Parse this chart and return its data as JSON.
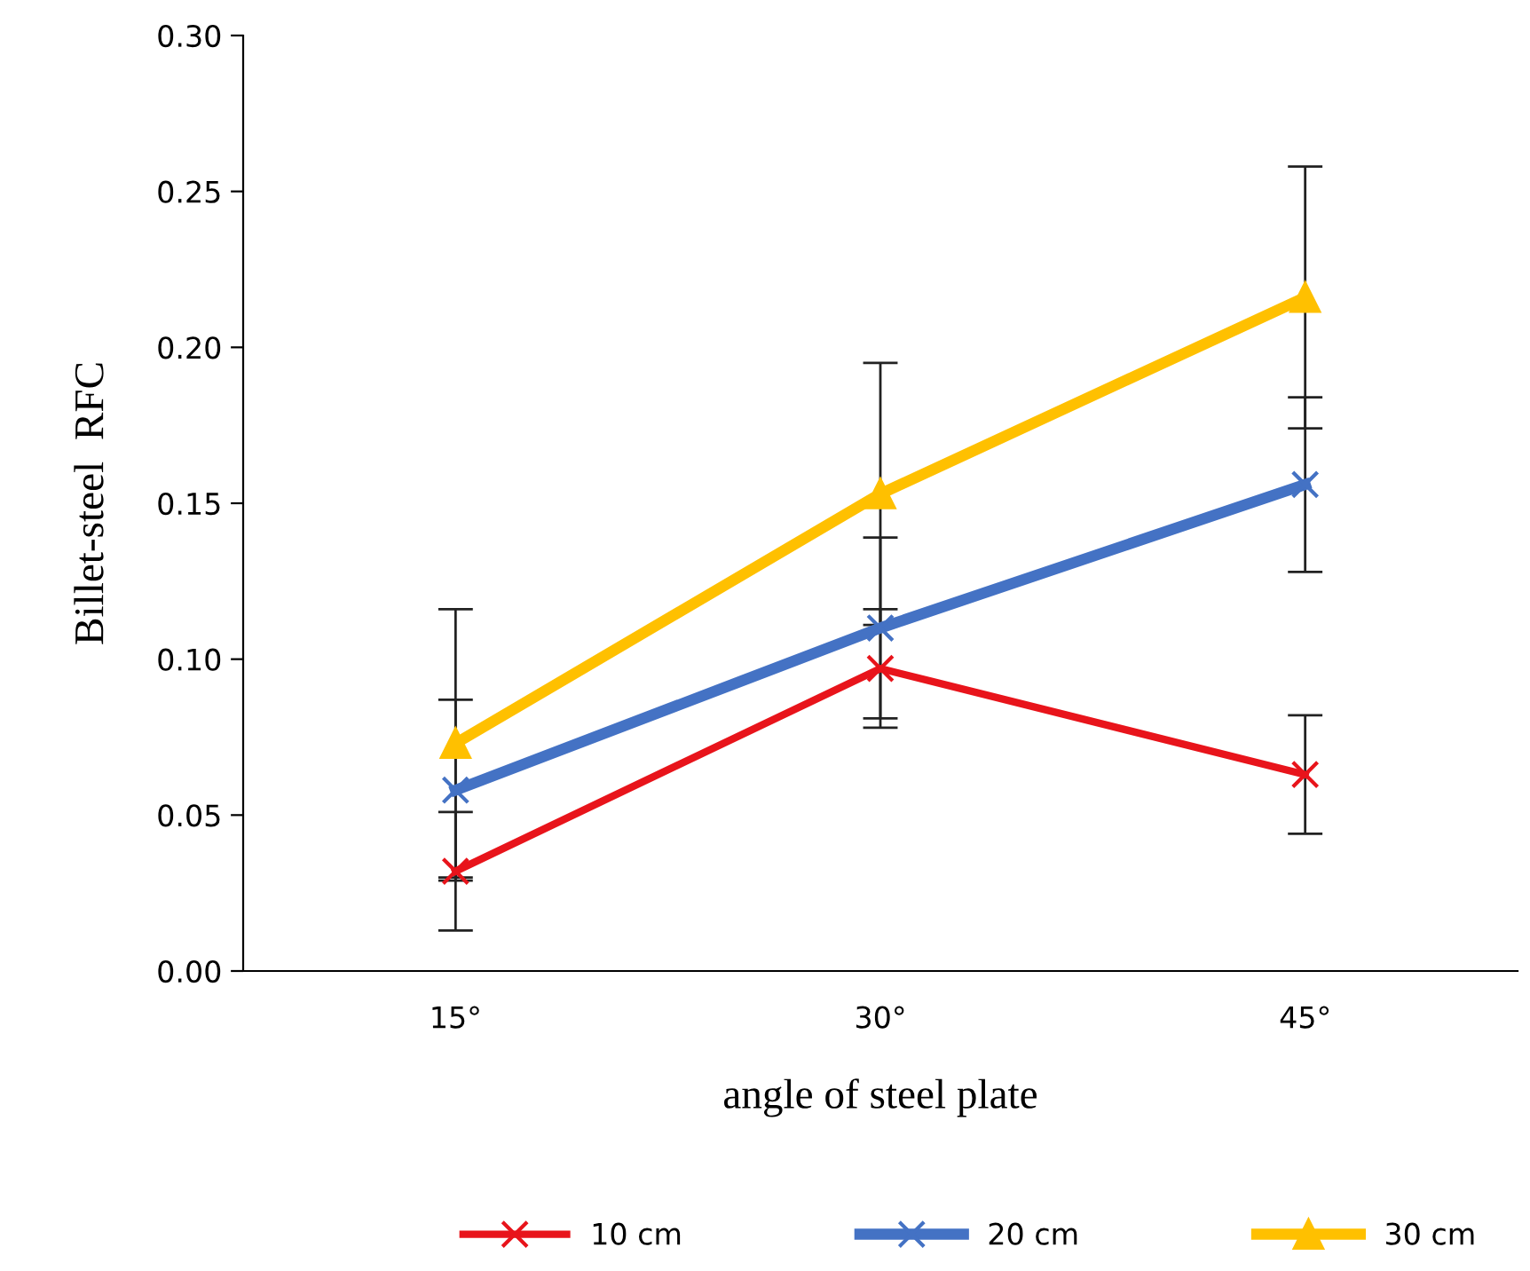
{
  "chart_data": {
    "type": "line",
    "xlabel": "angle of steel plate",
    "ylabel": "Billet-steel  RFC",
    "categories": [
      "15°",
      "30°",
      "45°"
    ],
    "series": [
      {
        "name": "10 cm",
        "color": "#e8141b",
        "marker": "cross",
        "values": [
          0.032,
          0.097,
          0.063
        ],
        "errors": [
          0.019,
          0.019,
          0.019
        ]
      },
      {
        "name": "20 cm",
        "color": "#4472c4",
        "marker": "cross",
        "values": [
          0.058,
          0.11,
          0.156
        ],
        "errors": [
          0.029,
          0.029,
          0.028
        ]
      },
      {
        "name": "30 cm",
        "color": "#ffc000",
        "marker": "triangle",
        "values": [
          0.073,
          0.153,
          0.216
        ],
        "errors": [
          0.043,
          0.042,
          0.042
        ]
      }
    ],
    "ylim": [
      0,
      0.3
    ],
    "yticks": [
      {
        "value": 0,
        "label": "0.00"
      },
      {
        "value": 0.05,
        "label": "0.05"
      },
      {
        "value": 0.1,
        "label": "0.10"
      },
      {
        "value": 0.15,
        "label": "0.15"
      },
      {
        "value": 0.2,
        "label": "0.20"
      },
      {
        "value": 0.25,
        "label": "0.25"
      },
      {
        "value": 0.3,
        "label": "0.30"
      }
    ],
    "grid": false,
    "legend": "bottom",
    "line_style": "solid"
  }
}
